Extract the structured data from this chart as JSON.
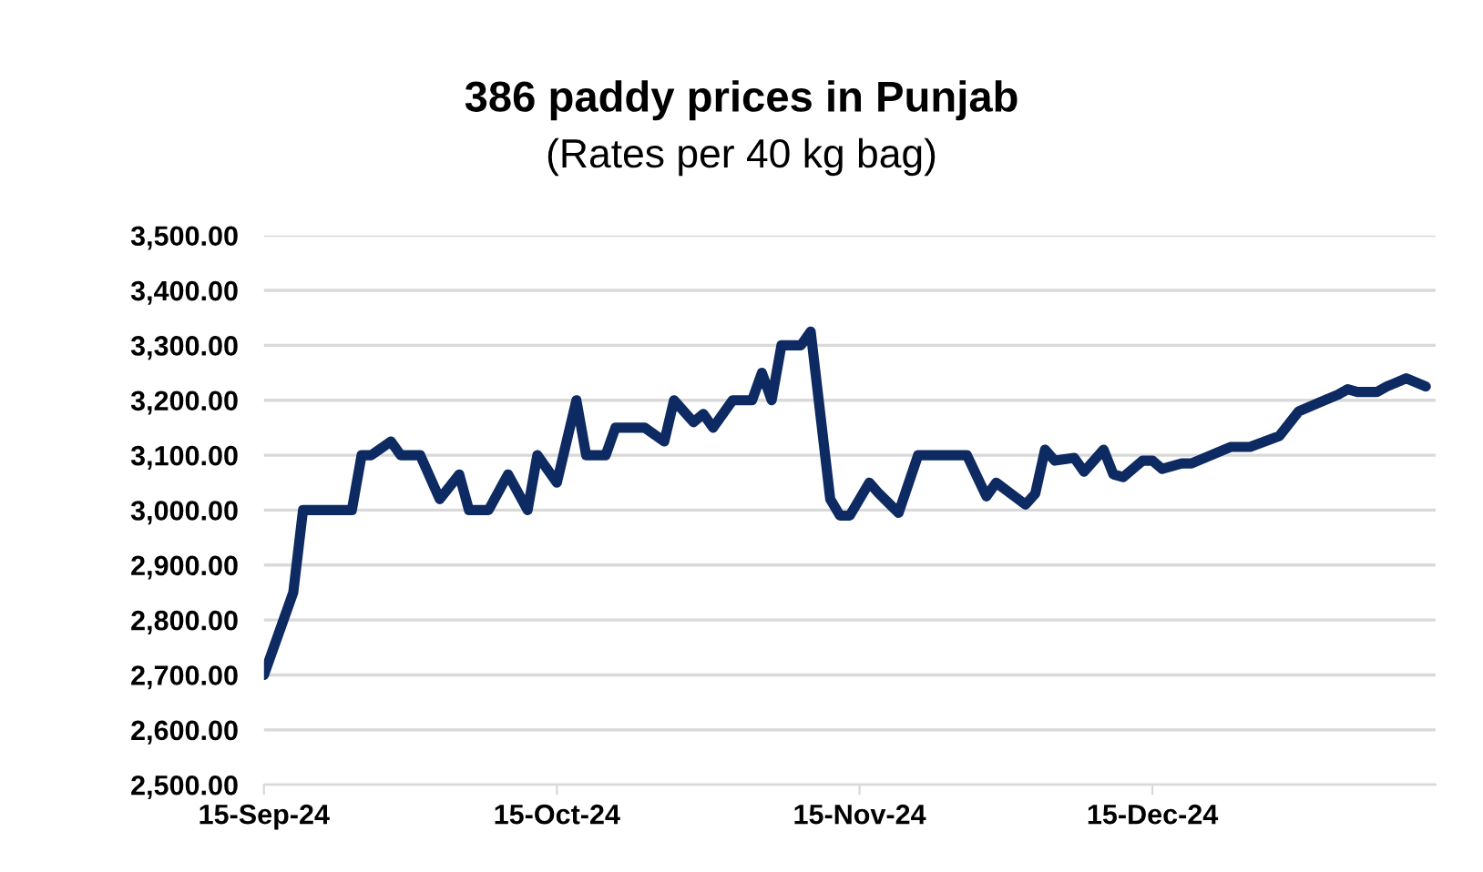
{
  "chart_data": {
    "type": "line",
    "title": "386 paddy prices in Punjab",
    "subtitle": "(Rates per 40 kg bag)",
    "x": [
      "2024-09-15",
      "2024-09-18",
      "2024-09-19",
      "2024-09-24",
      "2024-09-25",
      "2024-09-26",
      "2024-09-28",
      "2024-09-29",
      "2024-10-01",
      "2024-10-03",
      "2024-10-05",
      "2024-10-06",
      "2024-10-08",
      "2024-10-10",
      "2024-10-12",
      "2024-10-13",
      "2024-10-15",
      "2024-10-17",
      "2024-10-18",
      "2024-10-20",
      "2024-10-21",
      "2024-10-24",
      "2024-10-26",
      "2024-10-27",
      "2024-10-29",
      "2024-10-30",
      "2024-10-31",
      "2024-11-02",
      "2024-11-04",
      "2024-11-05",
      "2024-11-06",
      "2024-11-07",
      "2024-11-09",
      "2024-11-10",
      "2024-11-12",
      "2024-11-13",
      "2024-11-14",
      "2024-11-16",
      "2024-11-17",
      "2024-11-19",
      "2024-11-21",
      "2024-11-26",
      "2024-11-28",
      "2024-11-29",
      "2024-12-02",
      "2024-12-03",
      "2024-12-04",
      "2024-12-05",
      "2024-12-07",
      "2024-12-08",
      "2024-12-10",
      "2024-12-11",
      "2024-12-12",
      "2024-12-14",
      "2024-12-15",
      "2024-12-16",
      "2024-12-18",
      "2024-12-19",
      "2024-12-21",
      "2024-12-23",
      "2024-12-25",
      "2024-12-28",
      "2024-12-30",
      "2025-01-01",
      "2025-01-03",
      "2025-01-04",
      "2025-01-05",
      "2025-01-07",
      "2025-01-08",
      "2025-01-10",
      "2025-01-12"
    ],
    "series": [
      {
        "color": "#0d2a63",
        "values": [
          2700,
          2850,
          3000,
          3000,
          3100,
          3100,
          3125,
          3100,
          3100,
          3020,
          3065,
          3000,
          3000,
          3065,
          3000,
          3100,
          3050,
          3200,
          3100,
          3100,
          3150,
          3150,
          3125,
          3200,
          3160,
          3175,
          3150,
          3200,
          3200,
          3250,
          3200,
          3300,
          3300,
          3325,
          3020,
          2990,
          2990,
          3050,
          3030,
          2995,
          3100,
          3100,
          3025,
          3050,
          3010,
          3030,
          3110,
          3090,
          3095,
          3070,
          3110,
          3065,
          3060,
          3090,
          3090,
          3075,
          3085,
          3085,
          3100,
          3115,
          3115,
          3135,
          3180,
          3195,
          3210,
          3220,
          3215,
          3215,
          3225,
          3240,
          3225
        ]
      }
    ],
    "xlim": [
      "2024-09-15",
      "2025-01-13"
    ],
    "xticks": [
      {
        "value": "2024-09-15",
        "label": "15-Sep-24"
      },
      {
        "value": "2024-10-15",
        "label": "15-Oct-24"
      },
      {
        "value": "2024-11-15",
        "label": "15-Nov-24"
      },
      {
        "value": "2024-12-15",
        "label": "15-Dec-24"
      }
    ],
    "ylim": [
      2500,
      3500
    ],
    "yticks": [
      {
        "value": 2500,
        "label": "2,500.00"
      },
      {
        "value": 2600,
        "label": "2,600.00"
      },
      {
        "value": 2700,
        "label": "2,700.00"
      },
      {
        "value": 2800,
        "label": "2,800.00"
      },
      {
        "value": 2900,
        "label": "2,900.00"
      },
      {
        "value": 3000,
        "label": "3,000.00"
      },
      {
        "value": 3100,
        "label": "3,100.00"
      },
      {
        "value": 3200,
        "label": "3,200.00"
      },
      {
        "value": 3300,
        "label": "3,300.00"
      },
      {
        "value": 3400,
        "label": "3,400.00"
      },
      {
        "value": 3500,
        "label": "3,500.00"
      }
    ],
    "grid": "y",
    "legend": false,
    "marker": "none",
    "line_style": "solid"
  }
}
